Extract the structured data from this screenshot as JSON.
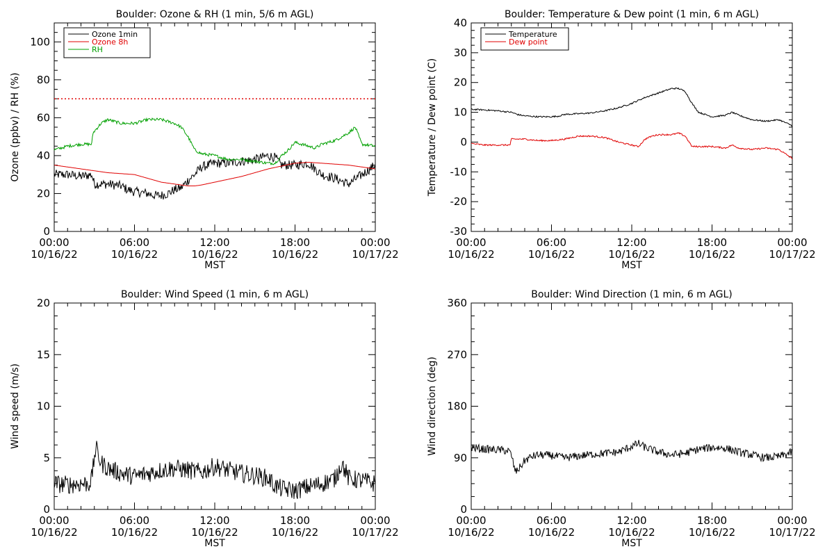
{
  "chart_data": [
    {
      "type": "line",
      "title": "Boulder: Ozone & RH (1 min, 5/6 m AGL)",
      "xlabel": "MST",
      "ylabel": "Ozone (ppbv) / RH (%)",
      "xlim": [
        0,
        24
      ],
      "ylim": [
        0,
        110
      ],
      "yticks": [
        0,
        20,
        40,
        60,
        80,
        100
      ],
      "xtick_labels": [
        [
          "00:00",
          "10/16/22"
        ],
        [
          "06:00",
          "10/16/22"
        ],
        [
          "12:00",
          "10/16/22"
        ],
        [
          "18:00",
          "10/16/22"
        ],
        [
          "00:00",
          "10/17/22"
        ]
      ],
      "legend_position": "top-left",
      "reference_lines": [
        {
          "y": 70,
          "color": "#e00000",
          "style": "dotted"
        }
      ],
      "series": [
        {
          "name": "Ozone 1min",
          "color": "#000000",
          "noise": 2.5,
          "x": [
            0,
            1,
            2,
            2.8,
            3,
            4,
            5,
            5.5,
            6,
            7,
            7.5,
            8,
            8.5,
            9,
            9.5,
            10,
            10.5,
            11,
            12,
            13,
            14,
            15,
            16,
            16.5,
            17,
            18,
            19,
            19.5,
            20,
            21,
            22,
            23,
            24
          ],
          "y": [
            30,
            30,
            29,
            30,
            25,
            25,
            24,
            22,
            21,
            20,
            19,
            19,
            20,
            22,
            23,
            27,
            30,
            34,
            36,
            36,
            37,
            38,
            40,
            39,
            35,
            35,
            36,
            33,
            30,
            28,
            25,
            30,
            35
          ]
        },
        {
          "name": "Ozone 8h",
          "color": "#e00000",
          "noise": 0,
          "x": [
            0,
            2,
            4,
            6,
            8,
            9,
            10,
            10.5,
            11,
            12,
            14,
            16,
            18,
            19,
            20,
            22,
            24
          ],
          "y": [
            35,
            33,
            31,
            30,
            26,
            25,
            24,
            24,
            24.5,
            26,
            29,
            33,
            36,
            36.5,
            36,
            35,
            33
          ]
        },
        {
          "name": "RH",
          "color": "#00a000",
          "noise": 0.8,
          "x": [
            0,
            1,
            2,
            2.8,
            2.9,
            3.5,
            4,
            5,
            6,
            7,
            7.5,
            8,
            9,
            9.5,
            10,
            10.5,
            11,
            12,
            13,
            14,
            15,
            16,
            16.5,
            17,
            17.5,
            18,
            19,
            19.5,
            20,
            21,
            22,
            22.5,
            23,
            24
          ],
          "y": [
            43,
            45,
            46,
            46,
            52,
            57,
            59,
            57,
            57,
            59,
            59,
            59,
            57,
            55,
            50,
            43,
            41,
            40,
            38,
            38,
            37,
            36,
            36,
            40,
            43,
            47,
            45,
            44,
            46,
            48,
            52,
            55,
            46,
            45
          ]
        }
      ]
    },
    {
      "type": "line",
      "title": "Boulder: Temperature & Dew point (1 min, 6 m AGL)",
      "xlabel": "MST",
      "ylabel": "Temperature / Dew point (C)",
      "xlim": [
        0,
        24
      ],
      "ylim": [
        -30,
        40
      ],
      "yticks": [
        -30,
        -20,
        -10,
        0,
        10,
        20,
        30,
        40
      ],
      "xtick_labels": [
        [
          "00:00",
          "10/16/22"
        ],
        [
          "06:00",
          "10/16/22"
        ],
        [
          "12:00",
          "10/16/22"
        ],
        [
          "18:00",
          "10/16/22"
        ],
        [
          "00:00",
          "10/17/22"
        ]
      ],
      "legend_position": "top-left",
      "series": [
        {
          "name": "Temperature",
          "color": "#000000",
          "noise": 0.25,
          "x": [
            0,
            1,
            2,
            3,
            3.5,
            4,
            5,
            6,
            6.5,
            7,
            8,
            9,
            10,
            11,
            12,
            13,
            14,
            15,
            15.5,
            16,
            16.5,
            17,
            18,
            19,
            19.5,
            20,
            21,
            22,
            23,
            24
          ],
          "y": [
            11,
            10.8,
            10.5,
            10,
            9.2,
            8.8,
            8.5,
            8.5,
            8.7,
            9.3,
            9.5,
            9.8,
            10.5,
            11.5,
            13,
            15,
            16.5,
            18,
            18,
            17,
            13,
            10,
            8.5,
            9,
            10,
            9,
            7.5,
            7,
            7.5,
            5.5
          ]
        },
        {
          "name": "Dew point",
          "color": "#e00000",
          "noise": 0.25,
          "x": [
            0,
            1,
            2,
            2.9,
            3,
            4,
            5,
            6,
            7,
            8,
            9,
            10,
            11,
            12,
            12.5,
            13,
            13.5,
            14,
            15,
            15.5,
            16,
            16.5,
            17,
            18,
            19,
            19.5,
            20,
            21,
            22,
            23,
            24
          ],
          "y": [
            -0.5,
            -1,
            -1,
            -1,
            1,
            1,
            0.5,
            0.5,
            1,
            2,
            2,
            1.5,
            0,
            -1,
            -1.5,
            1,
            2,
            2.5,
            2.5,
            3,
            2,
            -1.5,
            -1.5,
            -1.5,
            -2,
            -1,
            -2,
            -2.5,
            -2,
            -2.5,
            -5.5
          ]
        }
      ]
    },
    {
      "type": "line",
      "title": "Boulder: Wind Speed (1 min, 6 m AGL)",
      "xlabel": "MST",
      "ylabel": "Wind speed (m/s)",
      "xlim": [
        0,
        24
      ],
      "ylim": [
        0,
        20
      ],
      "yticks": [
        0,
        5,
        10,
        15,
        20
      ],
      "xtick_labels": [
        [
          "00:00",
          "10/16/22"
        ],
        [
          "06:00",
          "10/16/22"
        ],
        [
          "12:00",
          "10/16/22"
        ],
        [
          "18:00",
          "10/16/22"
        ],
        [
          "00:00",
          "10/17/22"
        ]
      ],
      "series": [
        {
          "name": "",
          "color": "#000000",
          "noise": 0.9,
          "x": [
            0,
            1,
            2,
            2.6,
            2.8,
            3,
            3.1,
            3.5,
            4,
            5,
            6,
            7,
            8,
            9,
            10,
            11,
            12,
            13,
            14,
            15,
            16,
            16.5,
            17,
            18,
            19,
            20,
            21,
            21.5,
            22,
            23,
            24
          ],
          "y": [
            2.5,
            2.4,
            2.5,
            2.5,
            3,
            5,
            6,
            4.5,
            4,
            3.5,
            3.2,
            3.5,
            3.8,
            4,
            3.8,
            3.6,
            4.2,
            3.8,
            3.5,
            3.3,
            3,
            2.3,
            2,
            1.8,
            2.2,
            2.5,
            3,
            4.5,
            3,
            2.8,
            2.5
          ]
        }
      ]
    },
    {
      "type": "line",
      "title": "Boulder: Wind Direction (1 min, 6 m AGL)",
      "xlabel": "MST",
      "ylabel": "Wind direction (deg)",
      "xlim": [
        0,
        24
      ],
      "ylim": [
        0,
        360
      ],
      "yticks": [
        0,
        90,
        180,
        270,
        360
      ],
      "xtick_labels": [
        [
          "00:00",
          "10/16/22"
        ],
        [
          "06:00",
          "10/16/22"
        ],
        [
          "12:00",
          "10/16/22"
        ],
        [
          "18:00",
          "10/16/22"
        ],
        [
          "00:00",
          "10/17/22"
        ]
      ],
      "series": [
        {
          "name": "",
          "color": "#000000",
          "noise": 7,
          "x": [
            0,
            1,
            2,
            2.8,
            3,
            3.3,
            3.6,
            4,
            4.5,
            5,
            6,
            7,
            8,
            9,
            10,
            11,
            11.5,
            12,
            12.5,
            13,
            14,
            15,
            16,
            17,
            18,
            19,
            20,
            21,
            21.5,
            22,
            23,
            24
          ],
          "y": [
            108,
            105,
            104,
            102,
            95,
            65,
            72,
            85,
            92,
            95,
            94,
            90,
            93,
            96,
            98,
            100,
            105,
            110,
            115,
            108,
            100,
            95,
            98,
            105,
            108,
            107,
            100,
            95,
            92,
            90,
            92,
            100
          ]
        }
      ]
    }
  ]
}
